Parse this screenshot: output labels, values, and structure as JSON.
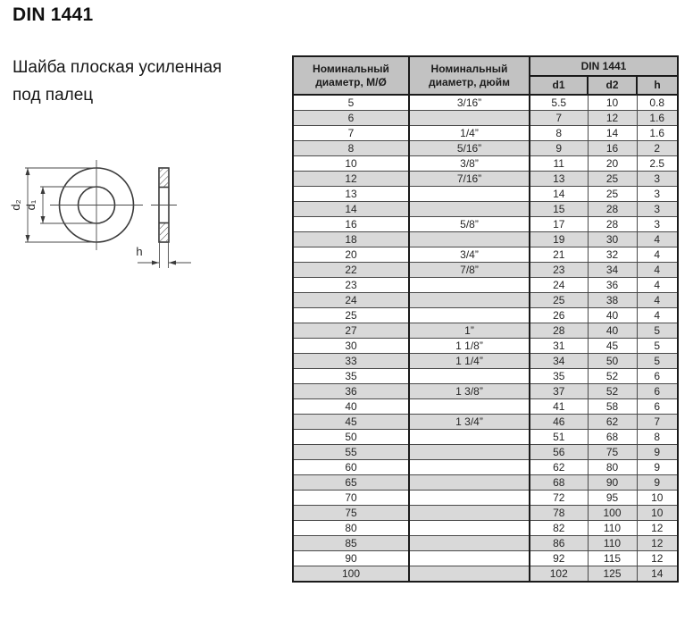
{
  "page": {
    "title": "DIN 1441",
    "subtitle_line1": "Шайба плоская усиленная",
    "subtitle_line2": "под палец"
  },
  "drawing": {
    "d2_label": "d₂",
    "d1_label": "d₁",
    "h_label": "h"
  },
  "table": {
    "header": {
      "col_nominal_metric": "Номинальный диаметр, М/Ø",
      "col_nominal_inch": "Номинальный диаметр, дюйм",
      "group": "DIN 1441",
      "sub": [
        "d1",
        "d2",
        "h"
      ]
    },
    "rows": [
      [
        "5",
        "3/16”",
        "5.5",
        "10",
        "0.8"
      ],
      [
        "6",
        "",
        "7",
        "12",
        "1.6"
      ],
      [
        "7",
        "1/4”",
        "8",
        "14",
        "1.6"
      ],
      [
        "8",
        "5/16”",
        "9",
        "16",
        "2"
      ],
      [
        "10",
        "3/8”",
        "11",
        "20",
        "2.5"
      ],
      [
        "12",
        "7/16”",
        "13",
        "25",
        "3"
      ],
      [
        "13",
        "",
        "14",
        "25",
        "3"
      ],
      [
        "14",
        "",
        "15",
        "28",
        "3"
      ],
      [
        "16",
        "5/8”",
        "17",
        "28",
        "3"
      ],
      [
        "18",
        "",
        "19",
        "30",
        "4"
      ],
      [
        "20",
        "3/4”",
        "21",
        "32",
        "4"
      ],
      [
        "22",
        "7/8”",
        "23",
        "34",
        "4"
      ],
      [
        "23",
        "",
        "24",
        "36",
        "4"
      ],
      [
        "24",
        "",
        "25",
        "38",
        "4"
      ],
      [
        "25",
        "",
        "26",
        "40",
        "4"
      ],
      [
        "27",
        "1”",
        "28",
        "40",
        "5"
      ],
      [
        "30",
        "1 1/8”",
        "31",
        "45",
        "5"
      ],
      [
        "33",
        "1 1/4”",
        "34",
        "50",
        "5"
      ],
      [
        "35",
        "",
        "35",
        "52",
        "6"
      ],
      [
        "36",
        "1 3/8”",
        "37",
        "52",
        "6"
      ],
      [
        "40",
        "",
        "41",
        "58",
        "6"
      ],
      [
        "45",
        "1 3/4”",
        "46",
        "62",
        "7"
      ],
      [
        "50",
        "",
        "51",
        "68",
        "8"
      ],
      [
        "55",
        "",
        "56",
        "75",
        "9"
      ],
      [
        "60",
        "",
        "62",
        "80",
        "9"
      ],
      [
        "65",
        "",
        "68",
        "90",
        "9"
      ],
      [
        "70",
        "",
        "72",
        "95",
        "10"
      ],
      [
        "75",
        "",
        "78",
        "100",
        "10"
      ],
      [
        "80",
        "",
        "82",
        "110",
        "12"
      ],
      [
        "85",
        "",
        "86",
        "110",
        "12"
      ],
      [
        "90",
        "",
        "92",
        "115",
        "12"
      ],
      [
        "100",
        "",
        "102",
        "125",
        "14"
      ]
    ]
  },
  "colors": {
    "header_bg": "#c2c2c2",
    "row_alt_bg": "#d9d9d9",
    "border_dark": "#1a1a1a",
    "text": "#1f1f1f"
  }
}
